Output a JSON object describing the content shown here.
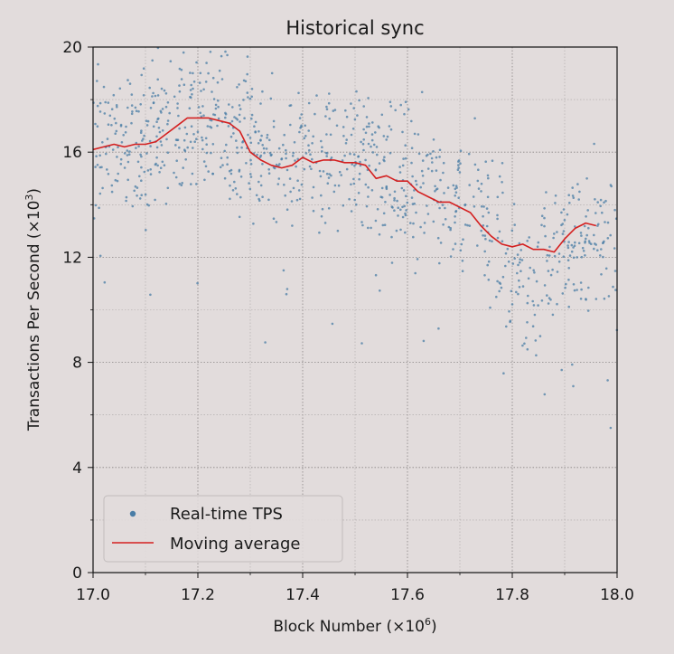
{
  "chart_data": {
    "type": "scatter",
    "title": "Historical sync",
    "xlabel_base": "Block Number (×10",
    "xlabel_exp": "6",
    "xlabel_close": ")",
    "ylabel_base": "Transactions Per Second (×10",
    "ylabel_exp": "3",
    "ylabel_close": ")",
    "xlim": [
      17.0,
      18.0
    ],
    "ylim": [
      0,
      20
    ],
    "x_ticks": [
      17.0,
      17.2,
      17.4,
      17.6,
      17.8,
      18.0
    ],
    "x_tick_labels": [
      "17.0",
      "17.2",
      "17.4",
      "17.6",
      "17.8",
      "18.0"
    ],
    "y_ticks": [
      0,
      4,
      8,
      12,
      16,
      20
    ],
    "y_tick_labels": [
      "0",
      "4",
      "8",
      "12",
      "16",
      "20"
    ],
    "grid": true,
    "legend_position": "lower-left",
    "series": [
      {
        "name": "Real-time TPS",
        "kind": "scatter",
        "color": "#4a7da6",
        "trend_x": [
          17.0,
          17.05,
          17.1,
          17.15,
          17.2,
          17.25,
          17.28,
          17.32,
          17.36,
          17.4,
          17.45,
          17.5,
          17.55,
          17.6,
          17.65,
          17.7,
          17.75,
          17.8,
          17.83,
          17.86,
          17.9,
          17.95,
          18.0
        ],
        "trend_y": [
          16.2,
          16.3,
          16.3,
          16.6,
          17.6,
          17.2,
          16.4,
          15.9,
          15.4,
          15.6,
          15.7,
          15.6,
          15.3,
          14.8,
          14.4,
          13.9,
          13.2,
          11.6,
          10.6,
          11.8,
          12.6,
          13.0,
          12.6
        ],
        "spread": 2.2,
        "count": 1000
      },
      {
        "name": "Moving average",
        "kind": "line",
        "color": "#d42020",
        "x": [
          17.0,
          17.02,
          17.04,
          17.06,
          17.08,
          17.1,
          17.12,
          17.14,
          17.16,
          17.18,
          17.2,
          17.22,
          17.24,
          17.26,
          17.28,
          17.3,
          17.32,
          17.34,
          17.36,
          17.38,
          17.4,
          17.42,
          17.44,
          17.46,
          17.48,
          17.5,
          17.52,
          17.54,
          17.56,
          17.58,
          17.6,
          17.62,
          17.64,
          17.66,
          17.68,
          17.7,
          17.72,
          17.74,
          17.76,
          17.78,
          17.8,
          17.82,
          17.84,
          17.86,
          17.88,
          17.9,
          17.92,
          17.94,
          17.96
        ],
        "y": [
          16.1,
          16.2,
          16.3,
          16.2,
          16.3,
          16.3,
          16.4,
          16.7,
          17.0,
          17.3,
          17.3,
          17.3,
          17.2,
          17.1,
          16.8,
          16.0,
          15.7,
          15.5,
          15.4,
          15.5,
          15.8,
          15.6,
          15.7,
          15.7,
          15.6,
          15.6,
          15.5,
          15.0,
          15.1,
          14.9,
          14.9,
          14.5,
          14.3,
          14.1,
          14.1,
          13.9,
          13.7,
          13.2,
          12.8,
          12.5,
          12.4,
          12.5,
          12.3,
          12.3,
          12.2,
          12.7,
          13.1,
          13.3,
          13.2
        ]
      }
    ]
  }
}
